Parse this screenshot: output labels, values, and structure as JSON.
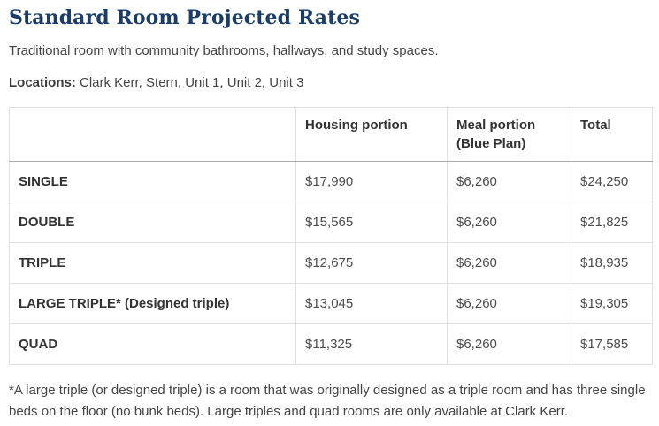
{
  "page": {
    "title": "Standard Room Projected Rates",
    "description": "Traditional room with community bathrooms, hallways, and study spaces.",
    "locations_label": "Locations:",
    "locations_value": " Clark Kerr, Stern, Unit 1, Unit 2, Unit 3",
    "footnote": "*A large triple (or designed triple) is a room that was originally designed as a triple room and has three single beds on the floor (no bunk beds). Large triples and quad rooms are only available at Clark Kerr."
  },
  "table": {
    "headers": [
      "",
      "Housing portion",
      "Meal portion (Blue Plan)",
      "Total"
    ],
    "rows": [
      {
        "label": "SINGLE",
        "housing": "$17,990",
        "meal": "$6,260",
        "total": "$24,250"
      },
      {
        "label": "DOUBLE",
        "housing": "$15,565",
        "meal": "$6,260",
        "total": "$21,825"
      },
      {
        "label": "TRIPLE",
        "housing": "$12,675",
        "meal": "$6,260",
        "total": "$18,935"
      },
      {
        "label": "LARGE TRIPLE* (Designed triple)",
        "housing": "$13,045",
        "meal": "$6,260",
        "total": "$19,305"
      },
      {
        "label": "QUAD",
        "housing": "$11,325",
        "meal": "$6,260",
        "total": "$17,585"
      }
    ]
  },
  "colors": {
    "heading": "#1a3d69",
    "body_text": "#444444",
    "table_border": "#e1e1e1",
    "header_bottom_border": "#ababab"
  }
}
